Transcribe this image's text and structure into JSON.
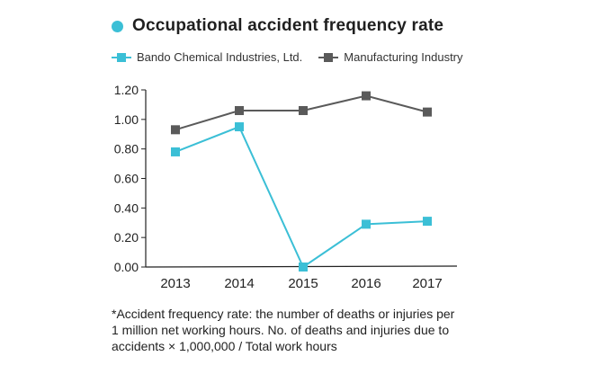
{
  "chart_data": {
    "type": "line",
    "title": "Occupational accident frequency rate",
    "categories": [
      "2013",
      "2014",
      "2015",
      "2016",
      "2017"
    ],
    "series": [
      {
        "name": "Bando Chemical Industries, Ltd.",
        "values": [
          0.78,
          0.95,
          0.0,
          0.29,
          0.31
        ],
        "color": "#3bbfd6",
        "marker": "square"
      },
      {
        "name": "Manufacturing Industry",
        "values": [
          0.93,
          1.06,
          1.06,
          1.16,
          1.05
        ],
        "color": "#5a5a5a",
        "marker": "square"
      }
    ],
    "yticks": [
      "0.00",
      "0.20",
      "0.40",
      "0.60",
      "0.80",
      "1.00",
      "1.20"
    ],
    "ylim": [
      0,
      1.2
    ],
    "grid": false,
    "legend_position": "top-left",
    "title_dot_color": "#3bbfd6"
  },
  "footnote": "*Accident frequency rate: the number of deaths or injuries per\n 1 million net working hours. No. of deaths and injuries due to\naccidents × 1,000,000 / Total work hours"
}
